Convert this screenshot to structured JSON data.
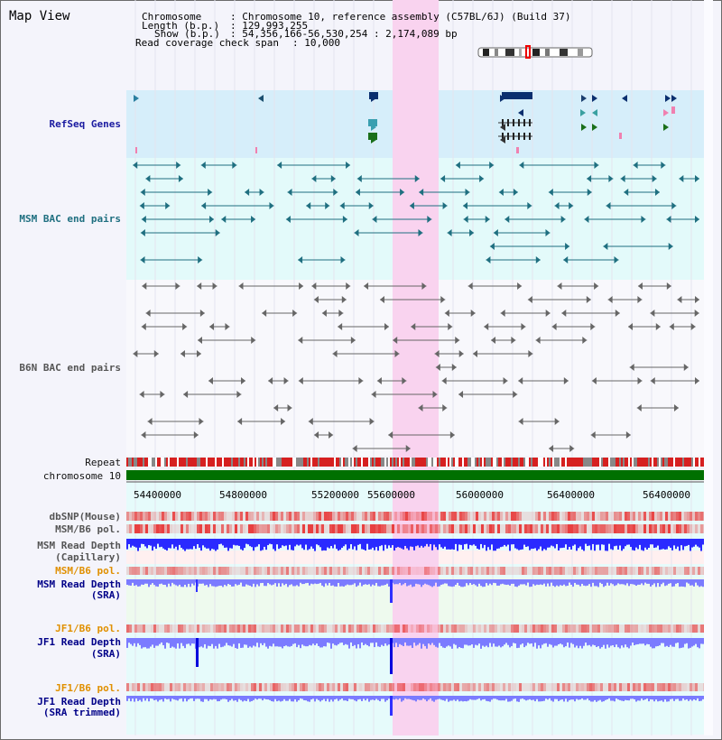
{
  "title": "Map View",
  "info": {
    "chromosome_label": "Chromosome",
    "chromosome_value": ": Chromosome 10, reference assembly (C57BL/6J) (Build 37)",
    "length_label": "Length (b.p.)",
    "length_value": ": 129,993,255",
    "show_label": "Show (b.p.)",
    "show_value": ": 54,356,166-56,530,254 : 2,174,089 bp",
    "coverage_label": "Read coverage check span",
    "coverage_value": ": 10,000"
  },
  "tracks": {
    "refseq": "RefSeq Genes",
    "msm_bac": "MSM BAC end pairs",
    "b6n_bac": "B6N BAC end pairs",
    "repeat": "Repeat",
    "chromosome": "chromosome 10",
    "dbsnp": "dbSNP(Mouse)",
    "msm_b6_pol": "MSM/B6 pol.",
    "msm_read_depth_cap": "MSM Read Depth",
    "msm_read_depth_cap2": "(Capillary)",
    "msm_b6_pol2": "MSM/B6 pol.",
    "msm_read_depth_sra": "MSM Read Depth",
    "msm_read_depth_sra2": "(SRA)",
    "jf1_b6_pol": "JF1/B6 pol.",
    "jf1_read_depth": "JF1 Read Depth",
    "jf1_read_depth2": "(SRA)",
    "jf1_b6_pol2": "JF1/B6 pol.",
    "jf1_read_depth_trim": "JF1 Read Depth",
    "jf1_read_depth_trim2": "(SRA trimmed)"
  },
  "axis_ticks": [
    "54400000",
    "54800000",
    "55200000",
    "55600000",
    "56000000",
    "56400000"
  ],
  "colors": {
    "highlight": "#f9d3ef",
    "refseq_bg": "#d6eefa",
    "msm_bg": "#e3fafa",
    "chromosome_bar": "#007000",
    "depth_blue": "#2a2aff",
    "depth_light": "#7b7bff",
    "pol_red": "#e84040"
  }
}
